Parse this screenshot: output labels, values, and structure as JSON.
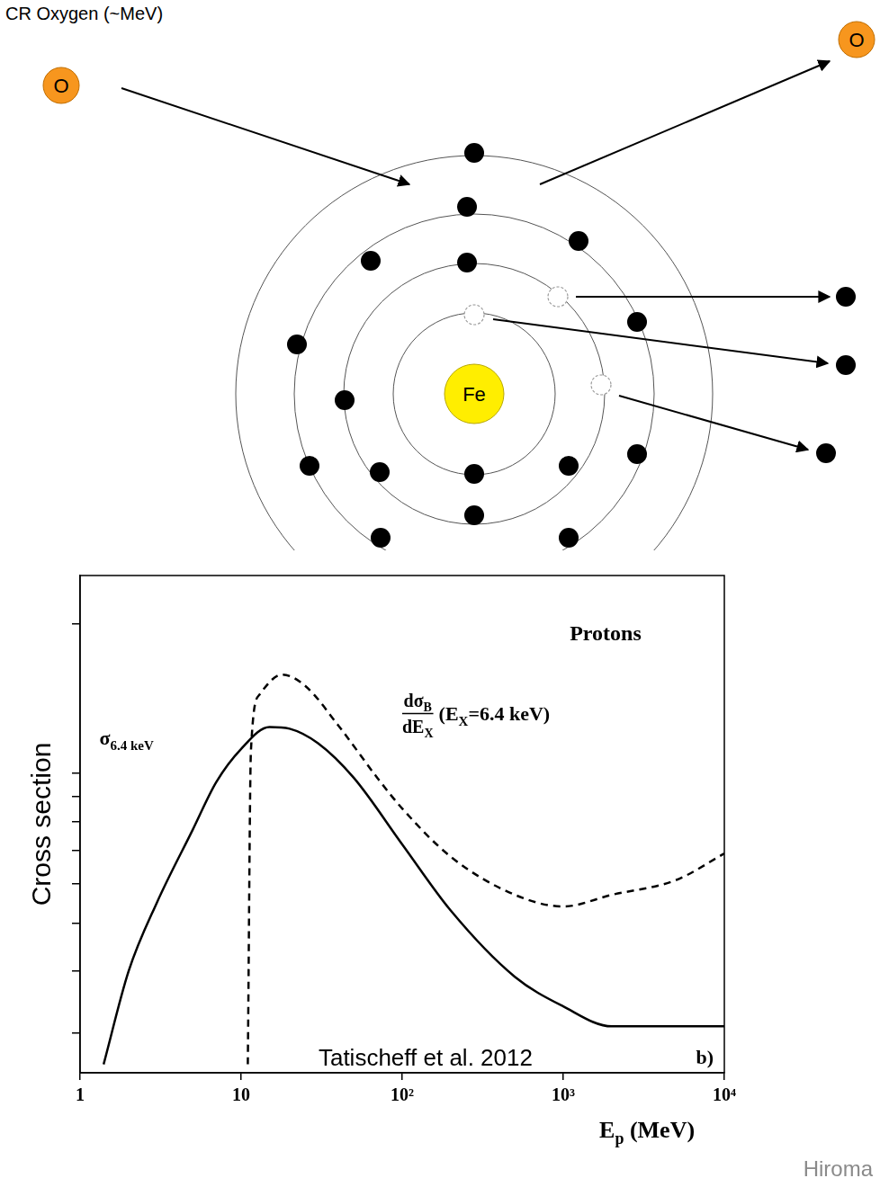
{
  "diagram": {
    "label": "CR Oxygen (~MeV)",
    "projectile": "O",
    "ejectile": "O",
    "nucleus": "Fe"
  },
  "chart_data": {
    "type": "line",
    "title": "Protons",
    "x_label": [
      {
        "text": "E"
      },
      {
        "text": "p",
        "sub": true
      },
      {
        "text": " (MeV)"
      }
    ],
    "y_label": "Cross section",
    "log": true,
    "grid": false,
    "tick_labels": "x",
    "xlim": [
      1,
      10000
    ],
    "xticks": [
      1,
      10,
      {
        "value": 100,
        "label": "10²"
      },
      {
        "value": 1000,
        "label": "10³"
      },
      {
        "value": 10000,
        "label": "10⁴"
      }
    ],
    "ylim": [
      0.25,
      2.5
    ],
    "yticks": [
      0.3,
      0.4,
      0.5,
      0.6,
      0.7,
      0.8,
      0.9,
      1,
      2
    ],
    "series": [
      {
        "label": {
          "runs": [
            {
              "text": "σ"
            },
            {
              "text": "6.4 keV",
              "sub": true
            }
          ]
        },
        "color": "#000000",
        "line_style": "solid",
        "x": [
          1.4,
          2,
          3,
          5,
          7,
          10,
          15,
          20,
          30,
          50,
          100,
          200,
          500,
          1000,
          2000,
          5000,
          10000
        ],
        "values": [
          0.26,
          0.4,
          0.55,
          0.77,
          0.96,
          1.12,
          1.24,
          1.23,
          1.15,
          0.98,
          0.72,
          0.53,
          0.39,
          0.34,
          0.31,
          0.31,
          0.31
        ]
      },
      {
        "label": {
          "numerator": [
            {
              "text": "dσ"
            },
            {
              "text": "B",
              "sub": true
            }
          ],
          "denominator": [
            {
              "text": "dE"
            },
            {
              "text": "X",
              "sub": true
            }
          ],
          "runs": [
            {
              "text": "(E"
            },
            {
              "text": "X",
              "sub": true
            },
            {
              "text": "=6.4 keV)"
            }
          ]
        },
        "color": "#000000",
        "line_style": "dashed",
        "x": [
          11,
          11.5,
          13,
          18,
          25,
          40,
          70,
          100,
          200,
          500,
          1000,
          2000,
          5000,
          10000
        ],
        "values": [
          0.26,
          1.11,
          1.44,
          1.58,
          1.5,
          1.25,
          0.98,
          0.85,
          0.68,
          0.57,
          0.54,
          0.57,
          0.61,
          0.69
        ]
      }
    ],
    "annotations": [
      {
        "text": "b)"
      },
      {
        "text": "Tatischeff et al. 2012"
      }
    ]
  },
  "footer": "Hiroma"
}
